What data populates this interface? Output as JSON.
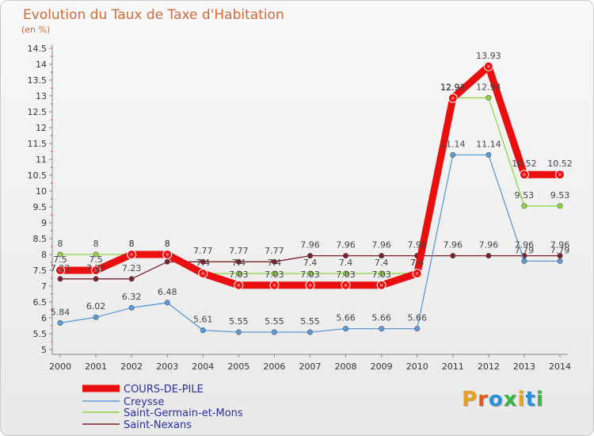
{
  "chart_data": {
    "type": "line",
    "title": "Evolution du Taux de Taxe d'Habitation",
    "subtitle": "(en %)",
    "x": [
      "2000",
      "2001",
      "2002",
      "2003",
      "2004",
      "2005",
      "2006",
      "2007",
      "2008",
      "2009",
      "2010",
      "2011",
      "2012",
      "2013",
      "2014"
    ],
    "ylim": [
      5,
      14.5
    ],
    "yticks": [
      "5",
      "5.5",
      "6",
      "6.5",
      "7",
      "7.5",
      "8",
      "8.5",
      "9",
      "9.5",
      "10",
      "10.5",
      "11",
      "11.5",
      "12",
      "12.5",
      "13",
      "13.5",
      "14",
      "14.5"
    ],
    "grid": false,
    "legend_position": "bottom-left",
    "series": [
      {
        "name": "Saint-Nexans",
        "color": "#7a1f2b",
        "values": [
          7.23,
          7.23,
          7.23,
          7.77,
          7.77,
          7.77,
          7.77,
          7.96,
          7.96,
          7.96,
          7.96,
          7.96,
          7.96,
          7.96,
          7.96
        ],
        "labels": [
          "7.23",
          "7.23",
          "7.23",
          "",
          "7.77",
          "7.77",
          "7.77",
          "7.96",
          "7.96",
          "7.96",
          "7.96",
          "7.96",
          "7.96",
          "7.96",
          "7.96"
        ]
      },
      {
        "name": "Saint-Germain-et-Mons",
        "color": "#8fd640",
        "values": [
          8,
          8,
          8,
          8,
          7.4,
          7.4,
          7.4,
          7.4,
          7.4,
          7.4,
          7.4,
          12.94,
          12.94,
          9.53,
          9.53
        ],
        "labels": [
          "8",
          "8",
          "8",
          "8",
          "7.4",
          "7.4",
          "7.4",
          "7.4",
          "7.4",
          "7.4",
          "7.4",
          "12.94",
          "12.94",
          "9.53",
          "9.53"
        ]
      },
      {
        "name": "Creysse",
        "color": "#5a9bd8",
        "values": [
          5.84,
          6.02,
          6.32,
          6.48,
          5.61,
          5.55,
          5.55,
          5.55,
          5.66,
          5.66,
          5.66,
          11.14,
          11.14,
          7.79,
          7.79
        ],
        "labels": [
          "5.84",
          "6.02",
          "6.32",
          "6.48",
          "5.61",
          "5.55",
          "5.55",
          "5.55",
          "5.66",
          "5.66",
          "5.66",
          "11.14",
          "11.14",
          "7.79",
          "7.79"
        ]
      },
      {
        "name": "COURS-DE-PILE",
        "color": "#ea0e0e",
        "values": [
          7.5,
          7.5,
          8,
          8,
          7.4,
          7.03,
          7.03,
          7.03,
          7.03,
          7.03,
          7.4,
          12.93,
          13.93,
          10.52,
          10.52
        ],
        "labels": [
          "7.5",
          "7.5",
          "8",
          "8",
          "7.4",
          "7.03",
          "7.03",
          "7.03",
          "7.03",
          "7.03",
          "7.4",
          "12.93",
          "13.93",
          "10.52",
          "10.52"
        ]
      }
    ],
    "legend": [
      "COURS-DE-PILE",
      "Creysse",
      "Saint-Germain-et-Mons",
      "Saint-Nexans"
    ]
  },
  "logo": {
    "text": "Proxiti",
    "colors": [
      "#e8a020",
      "#e05a1a",
      "#2a8fd8",
      "#39b54a",
      "#e8a020",
      "#2a8fd8",
      "#39b54a"
    ]
  }
}
